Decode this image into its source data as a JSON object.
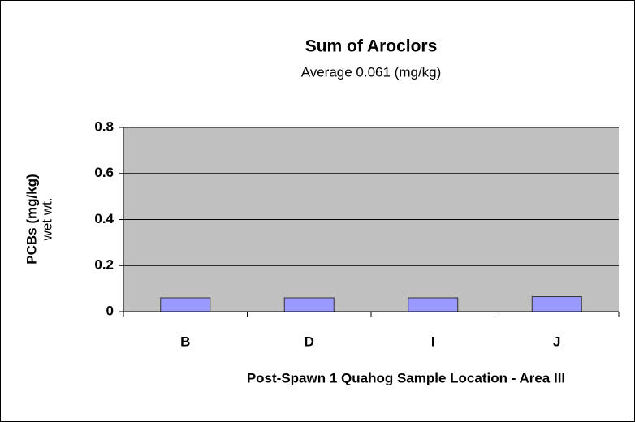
{
  "chart_data": {
    "type": "bar",
    "title": "Sum of Aroclors",
    "subtitle": "Average 0.061 (mg/kg)",
    "ylabel": [
      "PCBs (mg/kg)",
      "wet wt."
    ],
    "xlabel": "Post-Spawn 1 Quahog Sample Location - Area III",
    "categories": [
      "B",
      "D",
      "I",
      "J"
    ],
    "values": [
      0.06,
      0.06,
      0.06,
      0.065
    ],
    "color": "#9999ff",
    "ylim": [
      0,
      0.8
    ],
    "yticks": [
      0,
      0.2,
      0.4,
      0.6,
      0.8
    ],
    "grid": true
  }
}
